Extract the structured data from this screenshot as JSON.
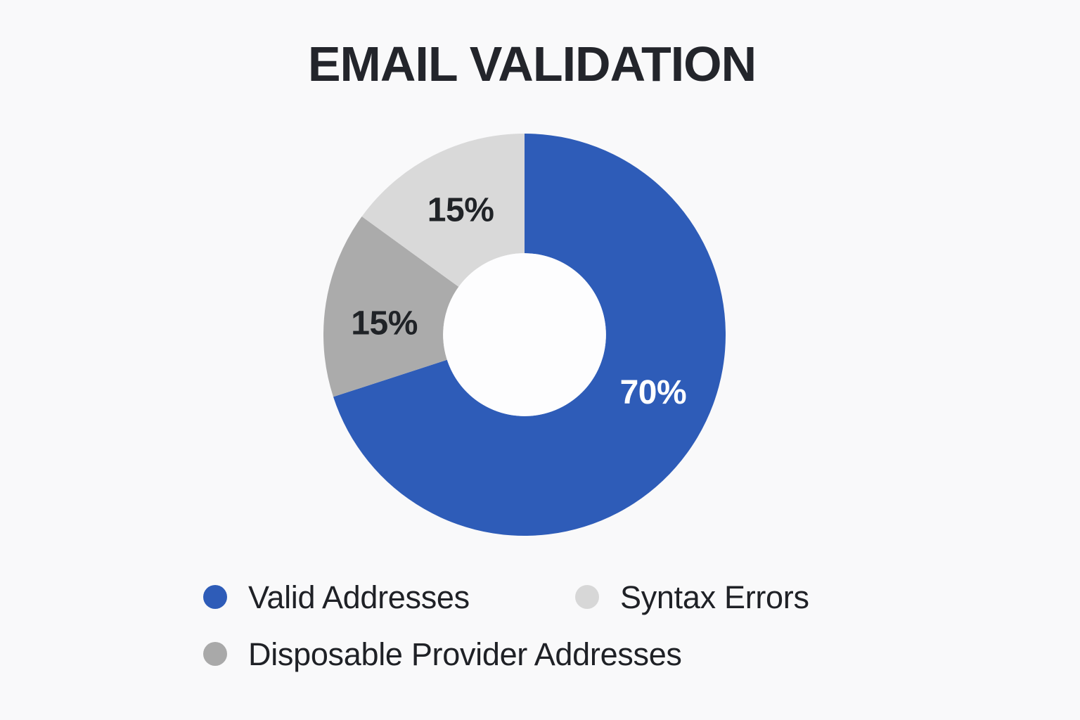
{
  "page": {
    "background_color": "#f9f9fa",
    "title_color": "#23252b",
    "legend_text_color": "#1f2126"
  },
  "chart_data": {
    "type": "pie",
    "variant": "donut",
    "title": "EMAIL VALIDATION",
    "units": "%",
    "start_angle_deg": 0,
    "direction": "clockwise",
    "inner_radius_ratio": 0.405,
    "label_radius_ratio": 0.7,
    "hole_color": "#fdfdfe",
    "slices": [
      {
        "label": "Valid Addresses",
        "value": 70,
        "display": "70%",
        "color": "#2e5cb8",
        "label_color": "#ffffff",
        "label_angle_deg": 114
      },
      {
        "label": "Disposable Provider Addresses",
        "value": 15,
        "display": "15%",
        "color": "#ababab",
        "label_color": "#202327",
        "label_angle_deg": 275
      },
      {
        "label": "Syntax Errors",
        "value": 15,
        "display": "15%",
        "color": "#d9d9d9",
        "label_color": "#202327",
        "label_angle_deg": 333
      }
    ],
    "legend_position": "bottom",
    "legend": [
      {
        "label": "Valid Addresses",
        "color": "#2e5cb8"
      },
      {
        "label": "Syntax Errors",
        "color": "#d7d7d7"
      },
      {
        "label": "Disposable Provider Addresses",
        "color": "#a9a9a9"
      }
    ]
  }
}
